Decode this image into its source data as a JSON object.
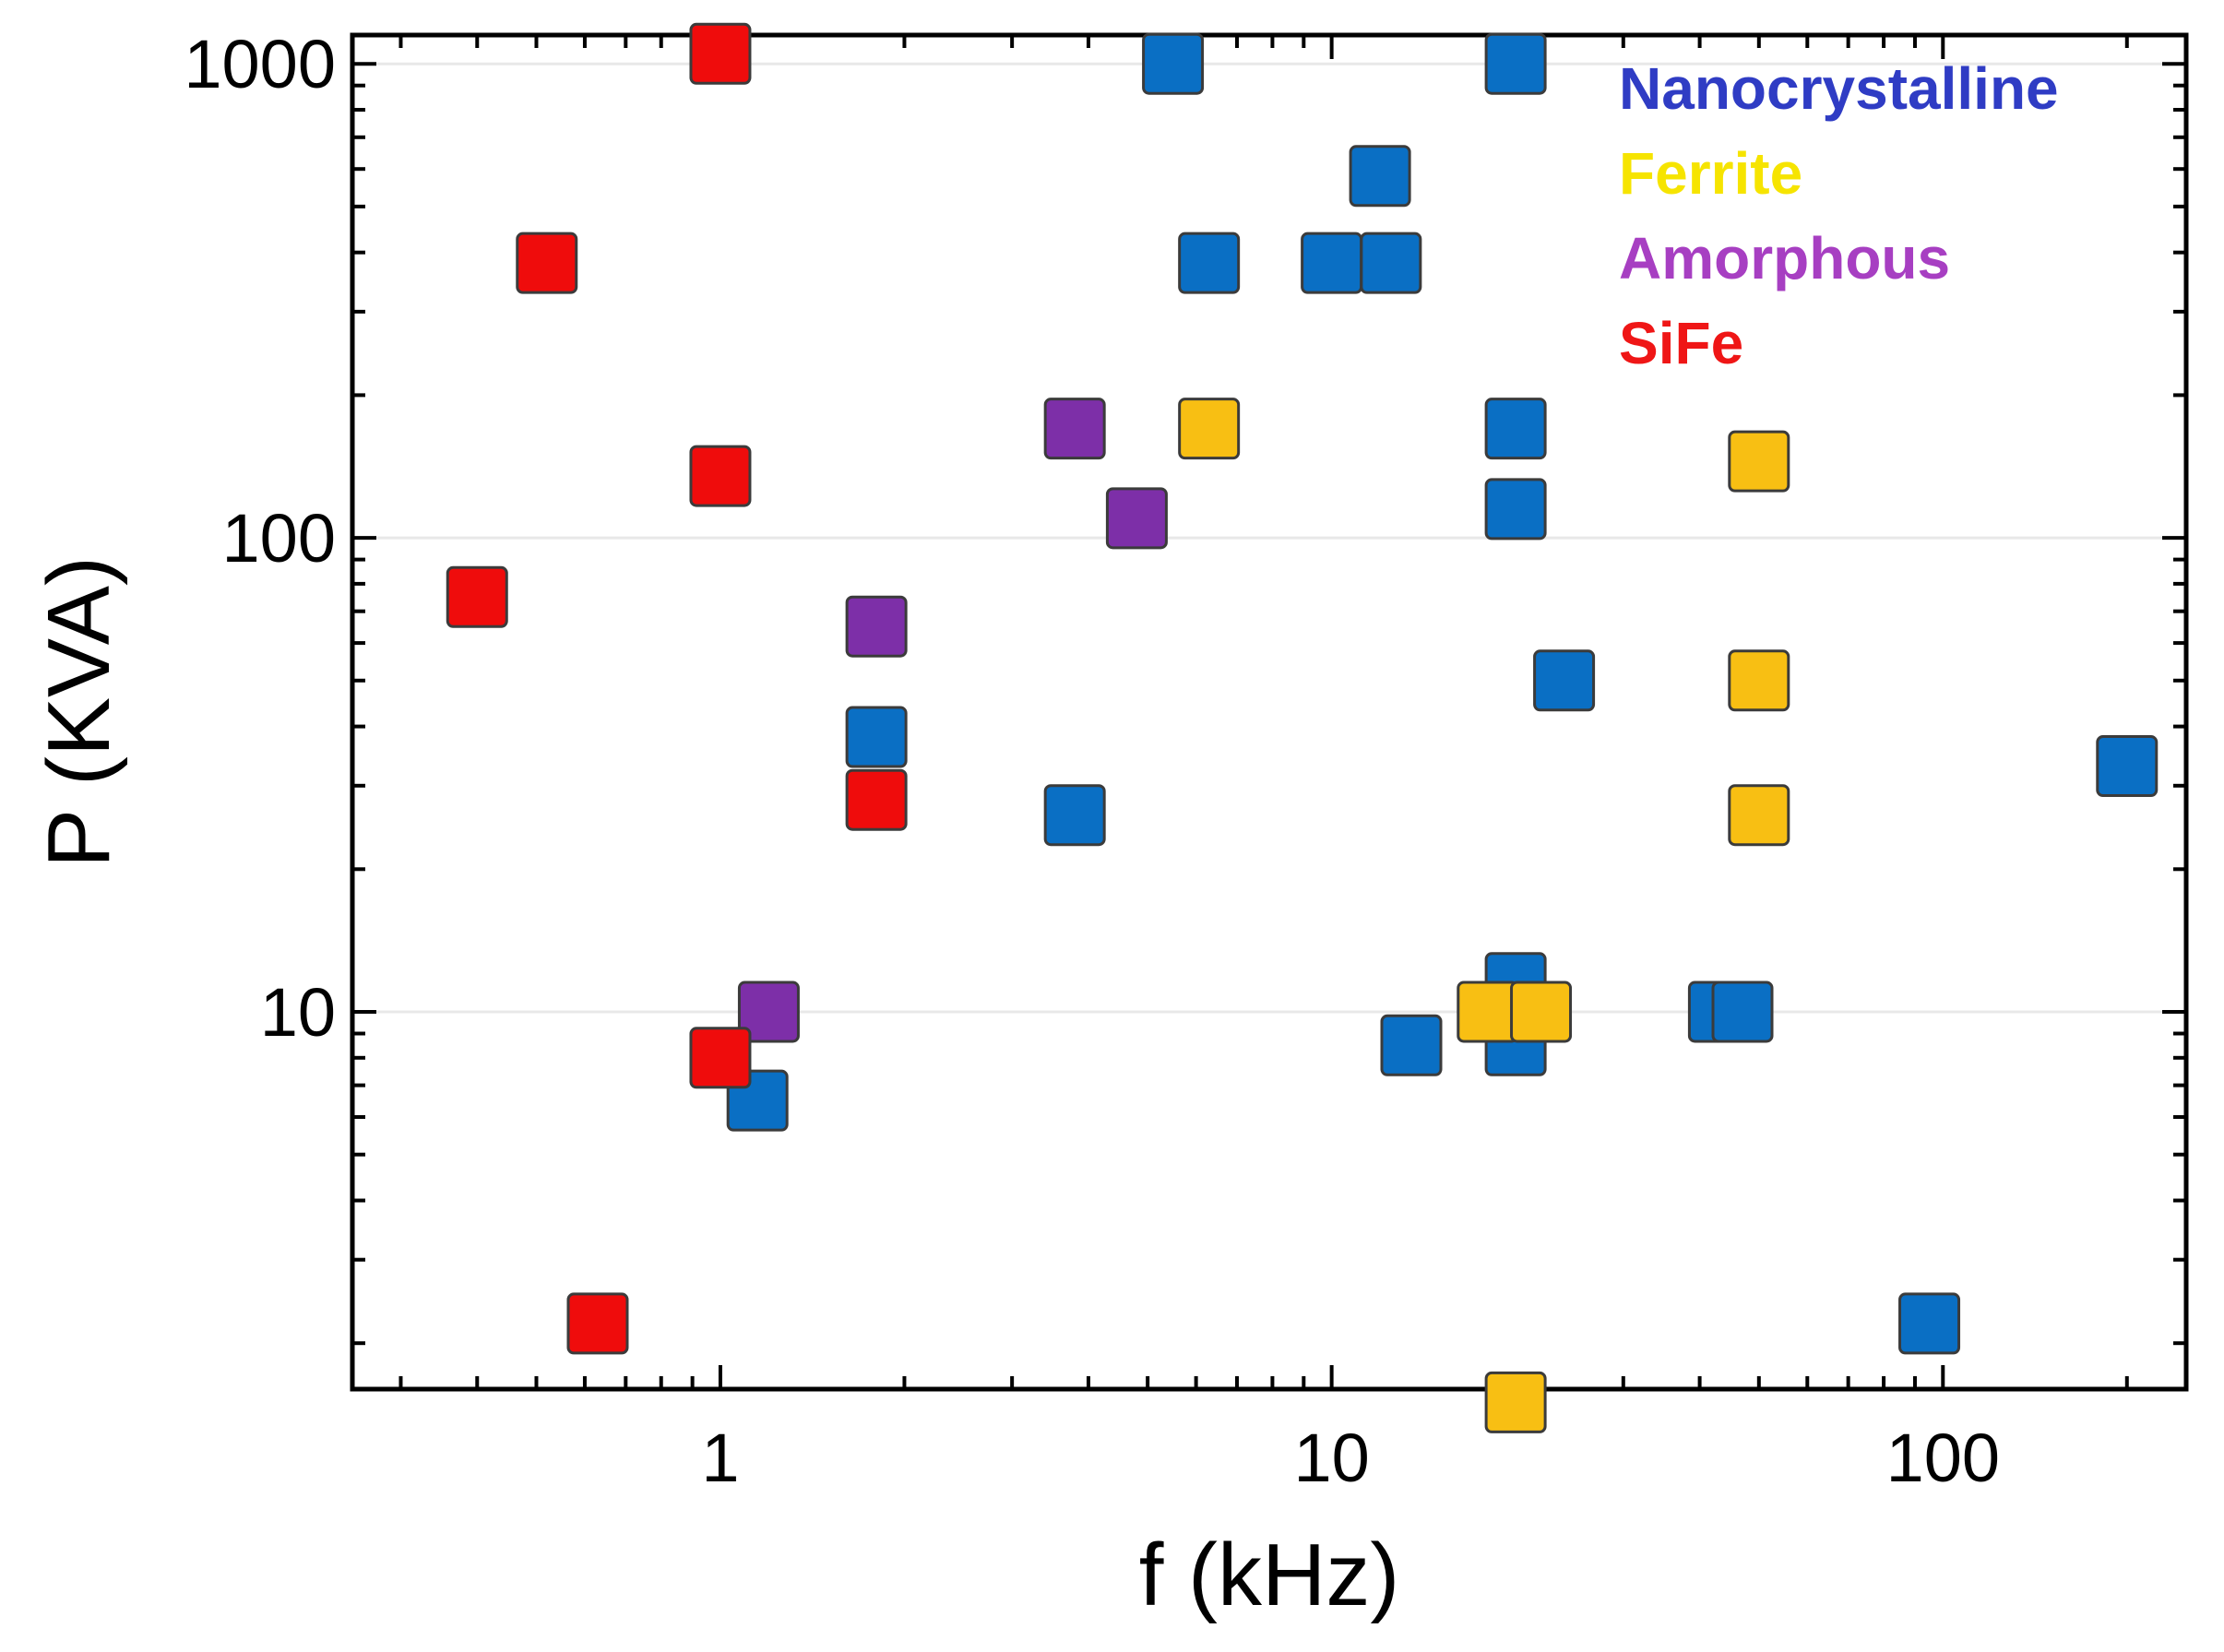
{
  "chart_data": {
    "type": "scatter",
    "title": "",
    "xlabel": "f (kHz)",
    "ylabel": "P (KVA)",
    "xscale": "log",
    "yscale": "log",
    "xlim": [
      0.25,
      250
    ],
    "ylim": [
      1.6,
      1150
    ],
    "x_ticks": [
      {
        "value": 1,
        "label": "1"
      },
      {
        "value": 10,
        "label": "10"
      },
      {
        "value": 100,
        "label": "100"
      }
    ],
    "y_ticks": [
      {
        "value": 10,
        "label": "10"
      },
      {
        "value": 100,
        "label": "100"
      },
      {
        "value": 1000,
        "label": "1000"
      }
    ],
    "legend_position": "top-right",
    "series": [
      {
        "name": "Nanocrystalline",
        "fill": "#0a6fc4",
        "label_color": "#2f3cc4",
        "points": [
          [
            5.5,
            1000
          ],
          [
            20,
            1000
          ],
          [
            12,
            580
          ],
          [
            6.3,
            380
          ],
          [
            10,
            380
          ],
          [
            12.5,
            380
          ],
          [
            20,
            170
          ],
          [
            20,
            115
          ],
          [
            24,
            50
          ],
          [
            1.8,
            38
          ],
          [
            3.8,
            26
          ],
          [
            200,
            33
          ],
          [
            20,
            11.5
          ],
          [
            20,
            8.5
          ],
          [
            13.5,
            8.5
          ],
          [
            43,
            10
          ],
          [
            47,
            10
          ],
          [
            1.15,
            6.5
          ],
          [
            95,
            2.2
          ]
        ]
      },
      {
        "name": "Ferrite",
        "fill": "#f8bf13",
        "label_color": "#f6e400",
        "points": [
          [
            6.3,
            170
          ],
          [
            50,
            145
          ],
          [
            50,
            50
          ],
          [
            50,
            26
          ],
          [
            18,
            10
          ],
          [
            22,
            10
          ],
          [
            20,
            1.5
          ]
        ]
      },
      {
        "name": "Amorphous",
        "fill": "#7d2fa8",
        "label_color": "#a73fc2",
        "points": [
          [
            3.8,
            170
          ],
          [
            4.8,
            110
          ],
          [
            1.8,
            65
          ],
          [
            1.2,
            10
          ]
        ]
      },
      {
        "name": "SiFe",
        "fill": "#ef0c0c",
        "label_color": "#ef1616",
        "points": [
          [
            1.0,
            1050
          ],
          [
            0.52,
            380
          ],
          [
            1.0,
            135
          ],
          [
            0.4,
            75
          ],
          [
            1.8,
            28
          ],
          [
            1.0,
            8
          ],
          [
            0.63,
            2.2
          ]
        ]
      }
    ]
  }
}
